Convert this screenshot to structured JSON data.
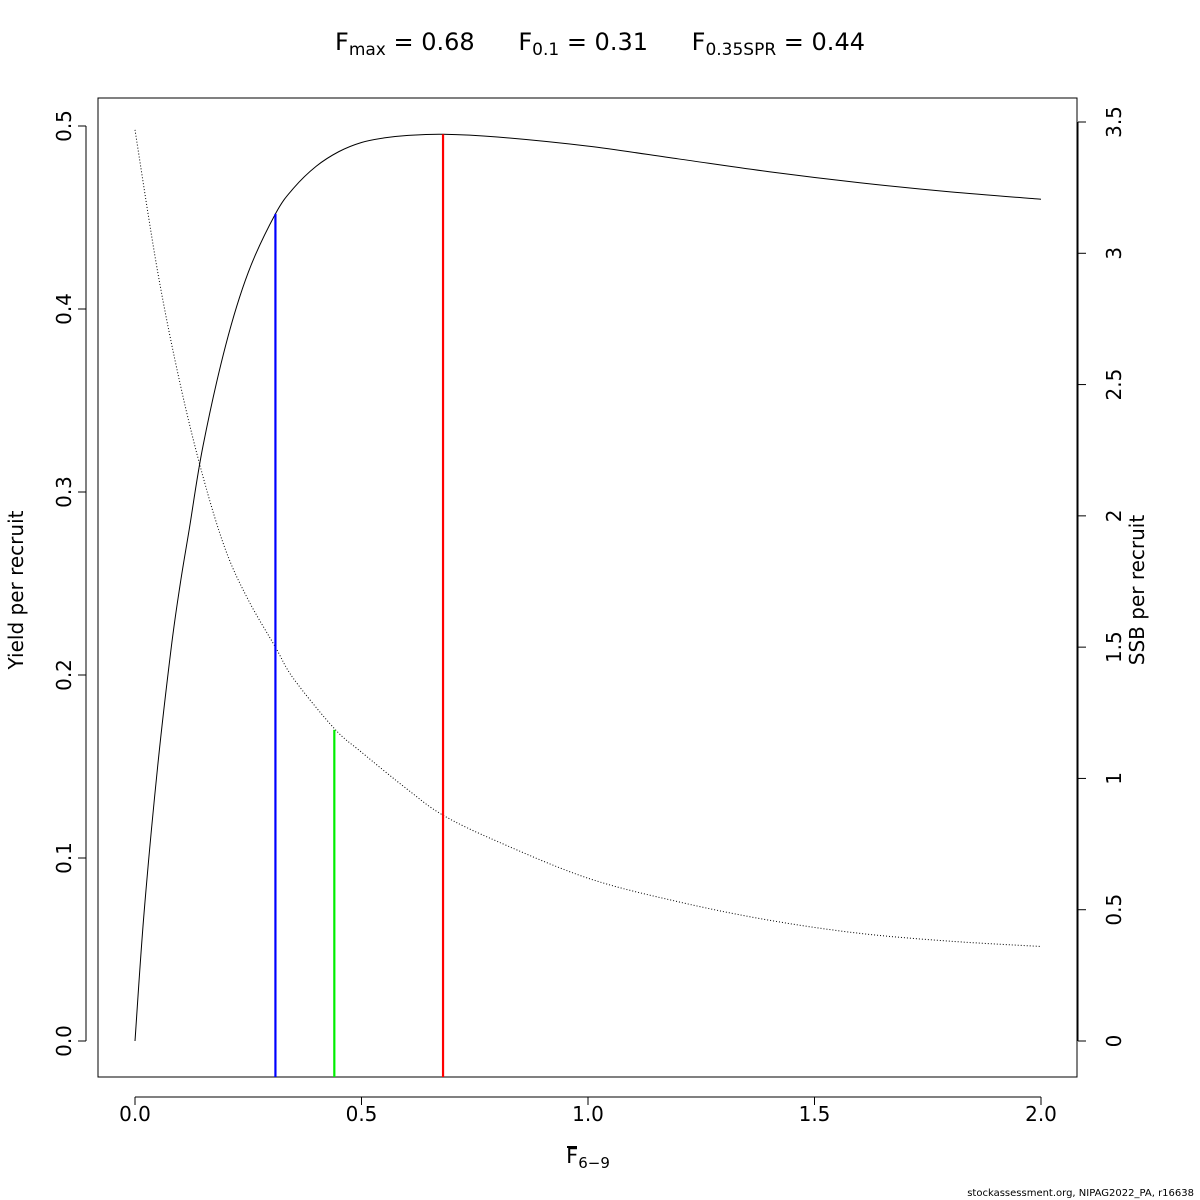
{
  "header": {
    "fmax": {
      "base": "F",
      "sub": "max",
      "text": " = 0.68"
    },
    "f01": {
      "base": "F",
      "sub": "0.1",
      "text": " = 0.31"
    },
    "fspr": {
      "base": "F",
      "sub": "0.35SPR",
      "text": " = 0.44"
    }
  },
  "xlabel": {
    "base": "F",
    "sub": "6−9"
  },
  "ylabel_left": "Yield per recruit",
  "ylabel_right": "SSB per recruit",
  "footnote": "stockassessment.org, NIPAG2022_PA, r16638",
  "chart_data": {
    "type": "line",
    "xlim": [
      0,
      2
    ],
    "ylim_left": [
      0,
      0.5
    ],
    "ylim_right": [
      0,
      3.5
    ],
    "x_ticks": [
      "0.0",
      "0.5",
      "1.0",
      "1.5",
      "2.0"
    ],
    "y_left_ticks": [
      "0.0",
      "0.1",
      "0.2",
      "0.3",
      "0.4",
      "0.5"
    ],
    "y_right_ticks": [
      "0",
      "0.5",
      "1",
      "1.5",
      "2",
      "2.5",
      "3",
      "3.5"
    ],
    "grid": false,
    "series": [
      {
        "style": "solid",
        "axis": "left",
        "color": "#000000",
        "x": [
          0,
          0.02,
          0.05,
          0.08,
          0.1,
          0.12,
          0.15,
          0.2,
          0.25,
          0.31,
          0.35,
          0.4,
          0.45,
          0.5,
          0.55,
          0.6,
          0.68,
          0.8,
          1.0,
          1.2,
          1.4,
          1.6,
          1.8,
          2.0
        ],
        "y": [
          0.0,
          0.07,
          0.15,
          0.215,
          0.25,
          0.28,
          0.325,
          0.38,
          0.42,
          0.452,
          0.466,
          0.478,
          0.486,
          0.491,
          0.4935,
          0.4948,
          0.4955,
          0.494,
          0.489,
          0.482,
          0.475,
          0.469,
          0.464,
          0.46
        ]
      },
      {
        "style": "dotted",
        "axis": "right",
        "color": "#000000",
        "x": [
          0,
          0.05,
          0.1,
          0.15,
          0.2,
          0.25,
          0.31,
          0.35,
          0.44,
          0.5,
          0.6,
          0.68,
          0.8,
          1.0,
          1.2,
          1.4,
          1.6,
          1.8,
          2.0
        ],
        "y": [
          3.47,
          2.93,
          2.5,
          2.15,
          1.87,
          1.68,
          1.5,
          1.38,
          1.19,
          1.1,
          0.96,
          0.86,
          0.76,
          0.62,
          0.53,
          0.46,
          0.41,
          0.38,
          0.36
        ]
      }
    ],
    "reference_lines": [
      {
        "x": 0.31,
        "y_top": 0.452,
        "color": "#0000ff"
      },
      {
        "x": 0.44,
        "y_top": 0.17,
        "color": "#00ee00"
      },
      {
        "x": 0.68,
        "y_top": 0.4955,
        "color": "#ff0000"
      }
    ]
  }
}
